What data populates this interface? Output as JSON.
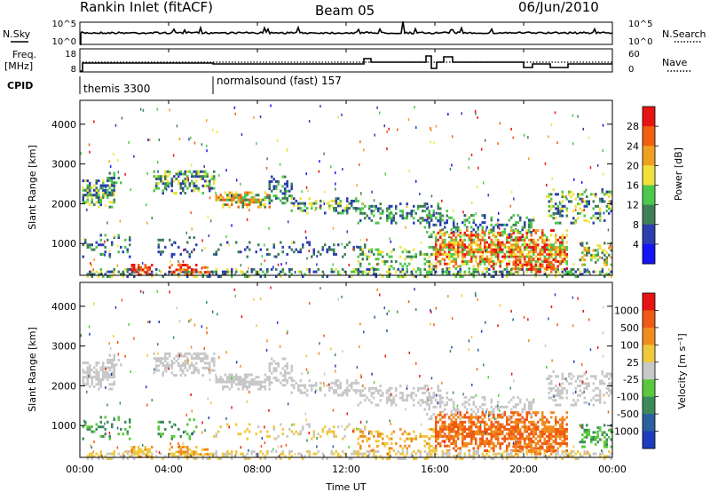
{
  "header": {
    "station": "Rankin Inlet (fitACF)",
    "beam": "Beam 05",
    "date": "06/Jun/2010"
  },
  "panels": {
    "nsky": {
      "left_label": "N.Sky",
      "right_label": "N.Search",
      "left_ticks": [
        "10^5",
        "10^0"
      ],
      "right_ticks": [
        "10^5",
        "10^0"
      ]
    },
    "freq": {
      "left_label": "Freq.",
      "left_unit": "[MHz]",
      "right_label": "Nave",
      "left_ticks": [
        "18",
        "8"
      ],
      "right_ticks": [
        "60",
        "0"
      ]
    },
    "cpid": {
      "label": "CPID",
      "modes": [
        {
          "name": "themis 3300",
          "start": "00:00"
        },
        {
          "name": "normalsound (fast) 157",
          "start": "06:00"
        }
      ]
    }
  },
  "chart_data": [
    {
      "type": "heatmap",
      "title": "",
      "xlabel": "",
      "ylabel": "Slant Range [km]",
      "yticks": [
        "1000",
        "2000",
        "3000",
        "4000"
      ],
      "ylim": [
        200,
        4600
      ],
      "colorbar": {
        "label": "Power [dB]",
        "ticks": [
          "4",
          "8",
          "12",
          "16",
          "20",
          "24",
          "28"
        ],
        "colors": [
          "#1414f5",
          "#2b3fb0",
          "#3f7f57",
          "#4cc84c",
          "#f0e13c",
          "#f0a020",
          "#f06010",
          "#e81414"
        ]
      }
    },
    {
      "type": "heatmap",
      "title": "",
      "xlabel": "Time UT",
      "ylabel": "Slant Range [km]",
      "yticks": [
        "1000",
        "2000",
        "3000",
        "4000"
      ],
      "ylim": [
        200,
        4600
      ],
      "xticks": [
        "00:00",
        "04:00",
        "08:00",
        "12:00",
        "16:00",
        "20:00",
        "00:00"
      ],
      "colorbar": {
        "label": "Velocity [m s⁻¹]",
        "ticks": [
          "1000",
          "500",
          "100",
          "25",
          "-25",
          "-100",
          "-500",
          "-1000"
        ],
        "colors": [
          "#1e3cbe",
          "#2a5fa0",
          "#3c8a5a",
          "#5ac83c",
          "#c8c8c8",
          "#f0c83c",
          "#f08c1e",
          "#f05a14",
          "#e81414"
        ]
      }
    }
  ]
}
